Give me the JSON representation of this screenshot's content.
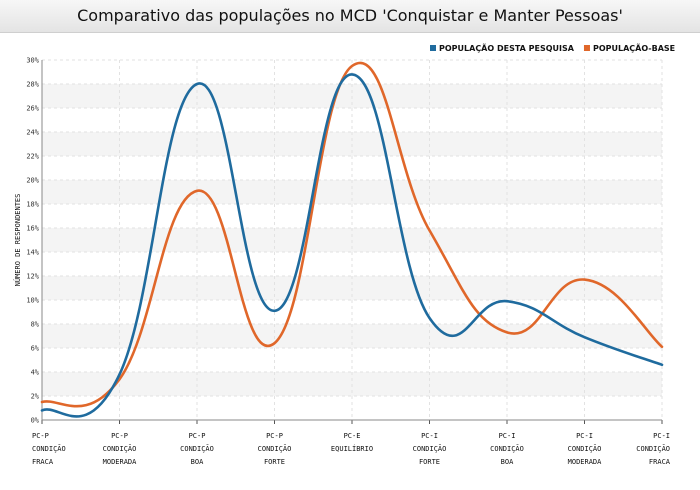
{
  "chart_data": {
    "type": "line",
    "title": "Comparativo das populações no MCD 'Conquistar e Manter Pessoas'",
    "ylabel": "NÚMERO DE RESPONDENTES",
    "xlabel": "",
    "ylim": [
      0,
      30
    ],
    "ytick_step": 2,
    "ytick_suffix": "%",
    "grid": true,
    "legend_position": "top-right",
    "categories": [
      [
        "PC-P",
        "CONDIÇÃO",
        "FRACA"
      ],
      [
        "PC-P",
        "CONDIÇÃO",
        "MODERADA"
      ],
      [
        "PC-P",
        "CONDIÇÃO",
        "BOA"
      ],
      [
        "PC-P",
        "CONDIÇÃO",
        "FORTE"
      ],
      [
        "PC-E",
        "EQUILÍBRIO"
      ],
      [
        "PC-I",
        "CONDIÇÃO",
        "FORTE"
      ],
      [
        "PC-I",
        "CONDIÇÃO",
        "BOA"
      ],
      [
        "PC-I",
        "CONDIÇÃO",
        "MODERADA"
      ],
      [
        "PC-I",
        "CONDIÇÃO",
        "FRACA"
      ]
    ],
    "series": [
      {
        "name": "POPULAÇÃO DESTA PESQUISA",
        "color": "#1f6b9e",
        "values": [
          0.8,
          3.8,
          28.0,
          9.1,
          28.8,
          8.5,
          9.9,
          6.9,
          4.6
        ]
      },
      {
        "name": "POPULAÇÃO-BASE",
        "color": "#e0672a",
        "values": [
          1.5,
          3.4,
          19.1,
          6.4,
          29.5,
          15.8,
          7.3,
          11.7,
          6.1
        ]
      }
    ]
  }
}
